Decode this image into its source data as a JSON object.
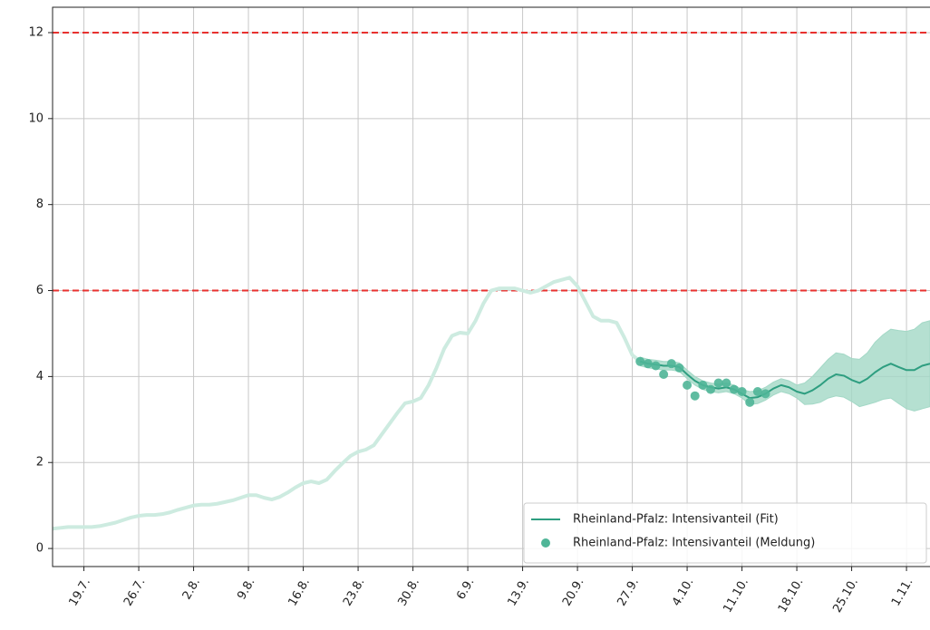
{
  "chart_data": {
    "type": "line",
    "categories": [
      null,
      null,
      null,
      null,
      "19.7.",
      null,
      null,
      null,
      null,
      null,
      null,
      "26.7.",
      null,
      null,
      null,
      null,
      null,
      null,
      "2.8.",
      null,
      null,
      null,
      null,
      null,
      null,
      "9.8.",
      null,
      null,
      null,
      null,
      null,
      null,
      "16.8.",
      null,
      null,
      null,
      null,
      null,
      null,
      "23.8.",
      null,
      null,
      null,
      null,
      null,
      null,
      "30.8.",
      null,
      null,
      null,
      null,
      null,
      null,
      "6.9.",
      null,
      null,
      null,
      null,
      null,
      null,
      "13.9.",
      null,
      null,
      null,
      null,
      null,
      null,
      "20.9.",
      null,
      null,
      null,
      null,
      null,
      null,
      "27.9.",
      null,
      null,
      null,
      null,
      null,
      null,
      "4.10.",
      null,
      null,
      null,
      null,
      null,
      null,
      "11.10.",
      null,
      null,
      null,
      null,
      null,
      null,
      "18.10.",
      null,
      null,
      null,
      null,
      null,
      null,
      "25.10.",
      null,
      null,
      null,
      null,
      null,
      null,
      "1.11.",
      null,
      null,
      null
    ],
    "series": [
      {
        "color": "#cdebe0",
        "values": [
          0.46,
          0.48,
          0.5,
          0.5,
          0.5,
          0.5,
          0.52,
          0.56,
          0.6,
          0.66,
          0.72,
          0.76,
          0.78,
          0.78,
          0.8,
          0.84,
          0.9,
          0.95,
          1.0,
          1.02,
          1.02,
          1.04,
          1.08,
          1.12,
          1.18,
          1.24,
          1.24,
          1.18,
          1.14,
          1.2,
          1.3,
          1.42,
          1.52,
          1.56,
          1.52,
          1.6,
          1.8,
          1.98,
          2.15,
          2.25,
          2.3,
          2.4,
          2.65,
          2.9,
          3.15,
          3.38,
          3.42,
          3.5,
          3.8,
          4.2,
          4.65,
          4.95,
          5.02,
          5.0,
          5.3,
          5.7,
          6.0,
          6.05,
          6.05,
          6.05,
          6.0,
          5.95,
          6.0,
          6.1,
          6.2,
          6.25,
          6.3,
          6.1,
          5.75,
          5.4,
          5.3,
          5.3,
          5.25,
          4.9,
          4.5,
          4.35,
          null,
          null,
          null,
          null,
          null,
          null,
          null,
          null,
          null,
          null,
          null,
          null,
          null,
          null,
          null,
          null,
          null,
          null,
          null,
          null,
          null,
          null,
          null,
          null,
          null,
          null,
          null,
          null,
          null,
          null,
          null,
          null,
          null,
          null,
          null,
          null,
          null
        ]
      },
      {
        "name": "Rheinland-Pfalz: Intensivanteil (Fit)",
        "color": "#2e9e80",
        "band_color": "#a3d8c6",
        "values": [
          null,
          null,
          null,
          null,
          null,
          null,
          null,
          null,
          null,
          null,
          null,
          null,
          null,
          null,
          null,
          null,
          null,
          null,
          null,
          null,
          null,
          null,
          null,
          null,
          null,
          null,
          null,
          null,
          null,
          null,
          null,
          null,
          null,
          null,
          null,
          null,
          null,
          null,
          null,
          null,
          null,
          null,
          null,
          null,
          null,
          null,
          null,
          null,
          null,
          null,
          null,
          null,
          null,
          null,
          null,
          null,
          null,
          null,
          null,
          null,
          null,
          null,
          null,
          null,
          null,
          null,
          null,
          null,
          null,
          null,
          null,
          null,
          null,
          null,
          null,
          4.35,
          4.3,
          4.28,
          4.25,
          4.25,
          4.22,
          4.05,
          3.9,
          3.8,
          3.75,
          3.72,
          3.75,
          3.7,
          3.6,
          3.5,
          3.52,
          3.6,
          3.72,
          3.8,
          3.75,
          3.65,
          3.6,
          3.68,
          3.8,
          3.95,
          4.05,
          4.02,
          3.92,
          3.85,
          3.95,
          4.1,
          4.22,
          4.3,
          4.22,
          4.15,
          4.15,
          4.25,
          4.3
        ],
        "lower": [
          null,
          null,
          null,
          null,
          null,
          null,
          null,
          null,
          null,
          null,
          null,
          null,
          null,
          null,
          null,
          null,
          null,
          null,
          null,
          null,
          null,
          null,
          null,
          null,
          null,
          null,
          null,
          null,
          null,
          null,
          null,
          null,
          null,
          null,
          null,
          null,
          null,
          null,
          null,
          null,
          null,
          null,
          null,
          null,
          null,
          null,
          null,
          null,
          null,
          null,
          null,
          null,
          null,
          null,
          null,
          null,
          null,
          null,
          null,
          null,
          null,
          null,
          null,
          null,
          null,
          null,
          null,
          null,
          null,
          null,
          null,
          null,
          null,
          null,
          null,
          4.25,
          4.2,
          4.18,
          4.15,
          4.15,
          4.12,
          3.95,
          3.8,
          3.7,
          3.65,
          3.62,
          3.65,
          3.6,
          3.5,
          3.35,
          3.37,
          3.45,
          3.57,
          3.65,
          3.6,
          3.5,
          3.35,
          3.36,
          3.4,
          3.5,
          3.55,
          3.52,
          3.42,
          3.3,
          3.35,
          3.4,
          3.47,
          3.5,
          3.37,
          3.25,
          3.2,
          3.25,
          3.3
        ],
        "upper": [
          null,
          null,
          null,
          null,
          null,
          null,
          null,
          null,
          null,
          null,
          null,
          null,
          null,
          null,
          null,
          null,
          null,
          null,
          null,
          null,
          null,
          null,
          null,
          null,
          null,
          null,
          null,
          null,
          null,
          null,
          null,
          null,
          null,
          null,
          null,
          null,
          null,
          null,
          null,
          null,
          null,
          null,
          null,
          null,
          null,
          null,
          null,
          null,
          null,
          null,
          null,
          null,
          null,
          null,
          null,
          null,
          null,
          null,
          null,
          null,
          null,
          null,
          null,
          null,
          null,
          null,
          null,
          null,
          null,
          null,
          null,
          null,
          null,
          null,
          null,
          4.45,
          4.4,
          4.38,
          4.35,
          4.35,
          4.32,
          4.15,
          4.0,
          3.9,
          3.85,
          3.82,
          3.85,
          3.8,
          3.7,
          3.65,
          3.67,
          3.75,
          3.87,
          3.95,
          3.9,
          3.8,
          3.85,
          4.0,
          4.2,
          4.4,
          4.55,
          4.52,
          4.42,
          4.4,
          4.55,
          4.8,
          4.97,
          5.1,
          5.07,
          5.05,
          5.1,
          5.25,
          5.3
        ]
      },
      {
        "name": "Rheinland-Pfalz: Intensivanteil (Meldung)",
        "type": "scatter",
        "color": "#4fb597",
        "values": [
          null,
          null,
          null,
          null,
          null,
          null,
          null,
          null,
          null,
          null,
          null,
          null,
          null,
          null,
          null,
          null,
          null,
          null,
          null,
          null,
          null,
          null,
          null,
          null,
          null,
          null,
          null,
          null,
          null,
          null,
          null,
          null,
          null,
          null,
          null,
          null,
          null,
          null,
          null,
          null,
          null,
          null,
          null,
          null,
          null,
          null,
          null,
          null,
          null,
          null,
          null,
          null,
          null,
          null,
          null,
          null,
          null,
          null,
          null,
          null,
          null,
          null,
          null,
          null,
          null,
          null,
          null,
          null,
          null,
          null,
          null,
          null,
          null,
          null,
          null,
          4.35,
          4.3,
          4.25,
          4.05,
          4.3,
          4.2,
          3.8,
          3.55,
          3.8,
          3.7,
          3.85,
          3.85,
          3.7,
          3.65,
          3.4,
          3.65,
          3.6,
          null,
          null,
          null,
          null,
          null,
          null,
          null,
          null,
          null,
          null,
          null,
          null,
          null,
          null,
          null,
          null,
          null,
          null,
          null,
          null,
          null
        ]
      }
    ],
    "hlines": [
      {
        "value": 6,
        "color": "#e8312f"
      },
      {
        "value": 12,
        "color": "#e8312f"
      }
    ],
    "ylim": [
      -0.42,
      12.59
    ],
    "yticks": [
      0,
      2,
      4,
      6,
      8,
      10,
      12
    ],
    "grid": true,
    "legend": "lower right"
  }
}
